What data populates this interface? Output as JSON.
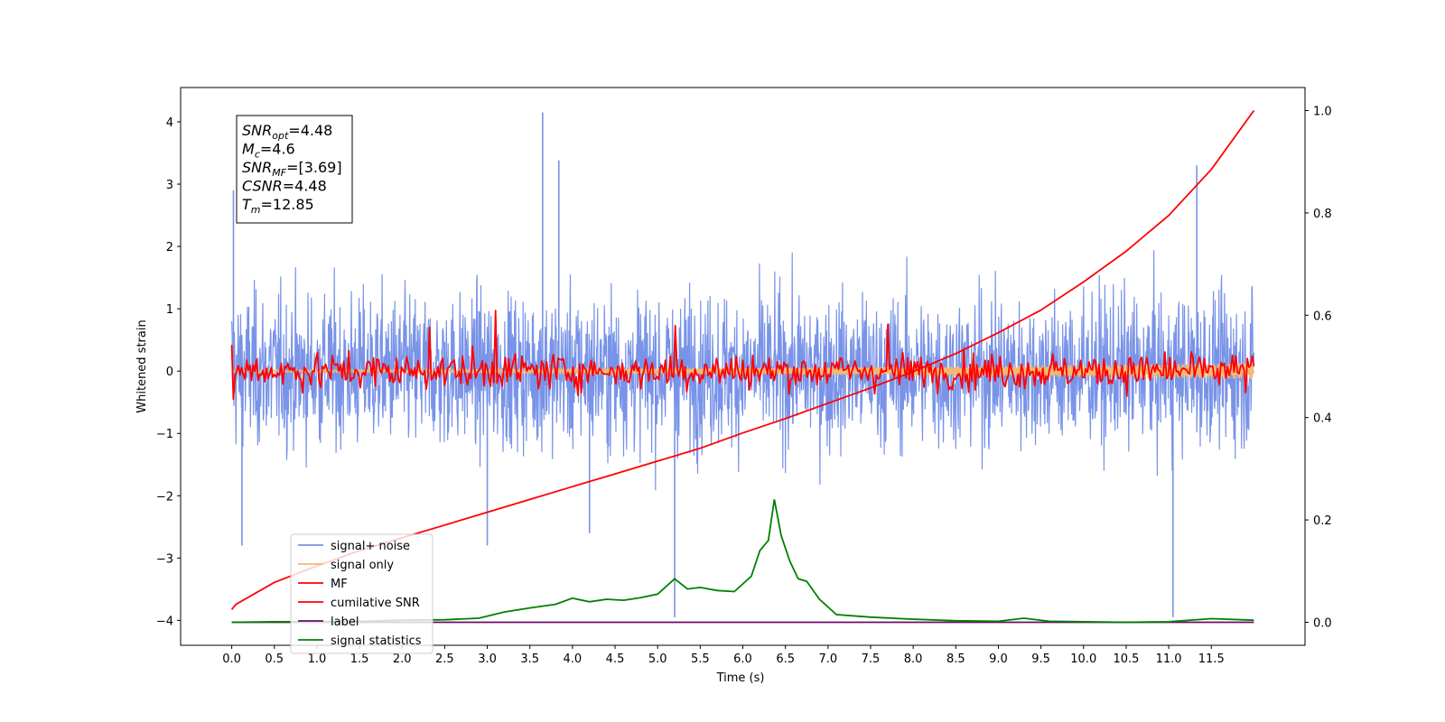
{
  "chart_data": {
    "type": "line",
    "title": "",
    "xlabel": "Time (s)",
    "ylabel": "Whitened strain",
    "ylabel_right": "",
    "xlim": [
      -0.6,
      12.6
    ],
    "ylim": [
      -4.4,
      4.55
    ],
    "ylim_right": [
      -0.045,
      1.045
    ],
    "x_ticks": [
      "0.0",
      "0.5",
      "1.0",
      "1.5",
      "2.0",
      "2.5",
      "3.0",
      "3.5",
      "4.0",
      "4.5",
      "5.0",
      "5.5",
      "6.0",
      "6.5",
      "7.0",
      "7.5",
      "8.0",
      "8.5",
      "9.0",
      "9.5",
      "10.0",
      "10.5",
      "11.0",
      "11.5"
    ],
    "y_ticks": [
      "4",
      "3",
      "2",
      "1",
      "0",
      "−1",
      "−2",
      "−3",
      "−4"
    ],
    "y_ticks_right": [
      "1.0",
      "0.8",
      "0.6",
      "0.4",
      "0.2",
      "0.0"
    ],
    "grid": false,
    "legend_position": "bottom-left",
    "annotation": {
      "lines": [
        {
          "sym": "SNR",
          "sub": "opt",
          "val": "=4.48"
        },
        {
          "sym": "M",
          "sub": "c",
          "val": "=4.6"
        },
        {
          "sym": "SNR",
          "sub": "MF",
          "val": "=[3.69]"
        },
        {
          "sym": "CSNR",
          "sub": "",
          "val": "=4.48"
        },
        {
          "sym": "T",
          "sub": "m",
          "val": "=12.85"
        }
      ]
    },
    "series": [
      {
        "name": "signal+ noise",
        "color": "#7893e8",
        "axis": "left",
        "kind": "noise-band",
        "x_range": [
          0.0,
          12.0
        ],
        "typical_range": [
          -1.8,
          1.9
        ],
        "spikes": [
          [
            0.02,
            2.9
          ],
          [
            3.65,
            4.15
          ],
          [
            3.84,
            3.38
          ],
          [
            11.33,
            3.3
          ],
          [
            5.2,
            -3.95
          ],
          [
            11.05,
            -3.95
          ],
          [
            0.12,
            -2.8
          ],
          [
            3.0,
            -2.8
          ],
          [
            4.2,
            -2.6
          ]
        ]
      },
      {
        "name": "signal only",
        "color": "#f5b870",
        "axis": "left",
        "kind": "chirp",
        "x_range": [
          0.0,
          12.0
        ],
        "amplitude_start": 0.02,
        "amplitude_end": 0.13
      },
      {
        "name": "MF",
        "color": "#ff0000",
        "axis": "left",
        "kind": "noise-line",
        "x_range": [
          0.0,
          12.0
        ],
        "typical_range": [
          -0.45,
          0.45
        ],
        "peaks": [
          [
            3.1,
            0.97
          ],
          [
            2.33,
            0.7
          ],
          [
            5.2,
            0.73
          ],
          [
            7.7,
            0.75
          ]
        ]
      },
      {
        "name": "cumilative SNR",
        "color": "#ff0000",
        "axis": "right",
        "x": [
          0.0,
          0.05,
          0.5,
          1.0,
          1.5,
          2.0,
          2.5,
          3.0,
          3.5,
          4.0,
          4.5,
          5.0,
          5.5,
          6.0,
          6.5,
          7.0,
          7.5,
          8.0,
          8.5,
          9.0,
          9.5,
          10.0,
          10.5,
          11.0,
          11.5,
          12.0
        ],
        "y": [
          0.025,
          0.035,
          0.078,
          0.11,
          0.14,
          0.165,
          0.19,
          0.215,
          0.24,
          0.265,
          0.29,
          0.315,
          0.34,
          0.37,
          0.398,
          0.428,
          0.458,
          0.49,
          0.525,
          0.566,
          0.61,
          0.665,
          0.725,
          0.795,
          0.885,
          1.0
        ]
      },
      {
        "name": "label",
        "color": "#6a0a6a",
        "axis": "right",
        "x": [
          0.0,
          12.0
        ],
        "y": [
          0.0,
          0.0
        ]
      },
      {
        "name": "signal statistics",
        "color": "#008000",
        "axis": "right",
        "x": [
          0.0,
          0.5,
          1.0,
          1.5,
          2.0,
          2.5,
          2.9,
          3.2,
          3.5,
          3.8,
          4.0,
          4.2,
          4.4,
          4.6,
          4.8,
          5.0,
          5.1,
          5.2,
          5.35,
          5.5,
          5.7,
          5.9,
          6.1,
          6.2,
          6.3,
          6.37,
          6.45,
          6.55,
          6.65,
          6.75,
          6.9,
          7.1,
          7.5,
          8.0,
          8.5,
          9.0,
          9.3,
          9.6,
          10.0,
          10.5,
          11.0,
          11.5,
          12.0
        ],
        "y": [
          0.0,
          0.001,
          0.001,
          0.002,
          0.004,
          0.005,
          0.008,
          0.02,
          0.028,
          0.035,
          0.047,
          0.04,
          0.045,
          0.043,
          0.048,
          0.055,
          0.07,
          0.085,
          0.065,
          0.068,
          0.062,
          0.06,
          0.09,
          0.14,
          0.16,
          0.24,
          0.17,
          0.12,
          0.085,
          0.08,
          0.045,
          0.015,
          0.01,
          0.006,
          0.003,
          0.002,
          0.008,
          0.002,
          0.001,
          0.0,
          0.001,
          0.007,
          0.004
        ]
      }
    ]
  }
}
